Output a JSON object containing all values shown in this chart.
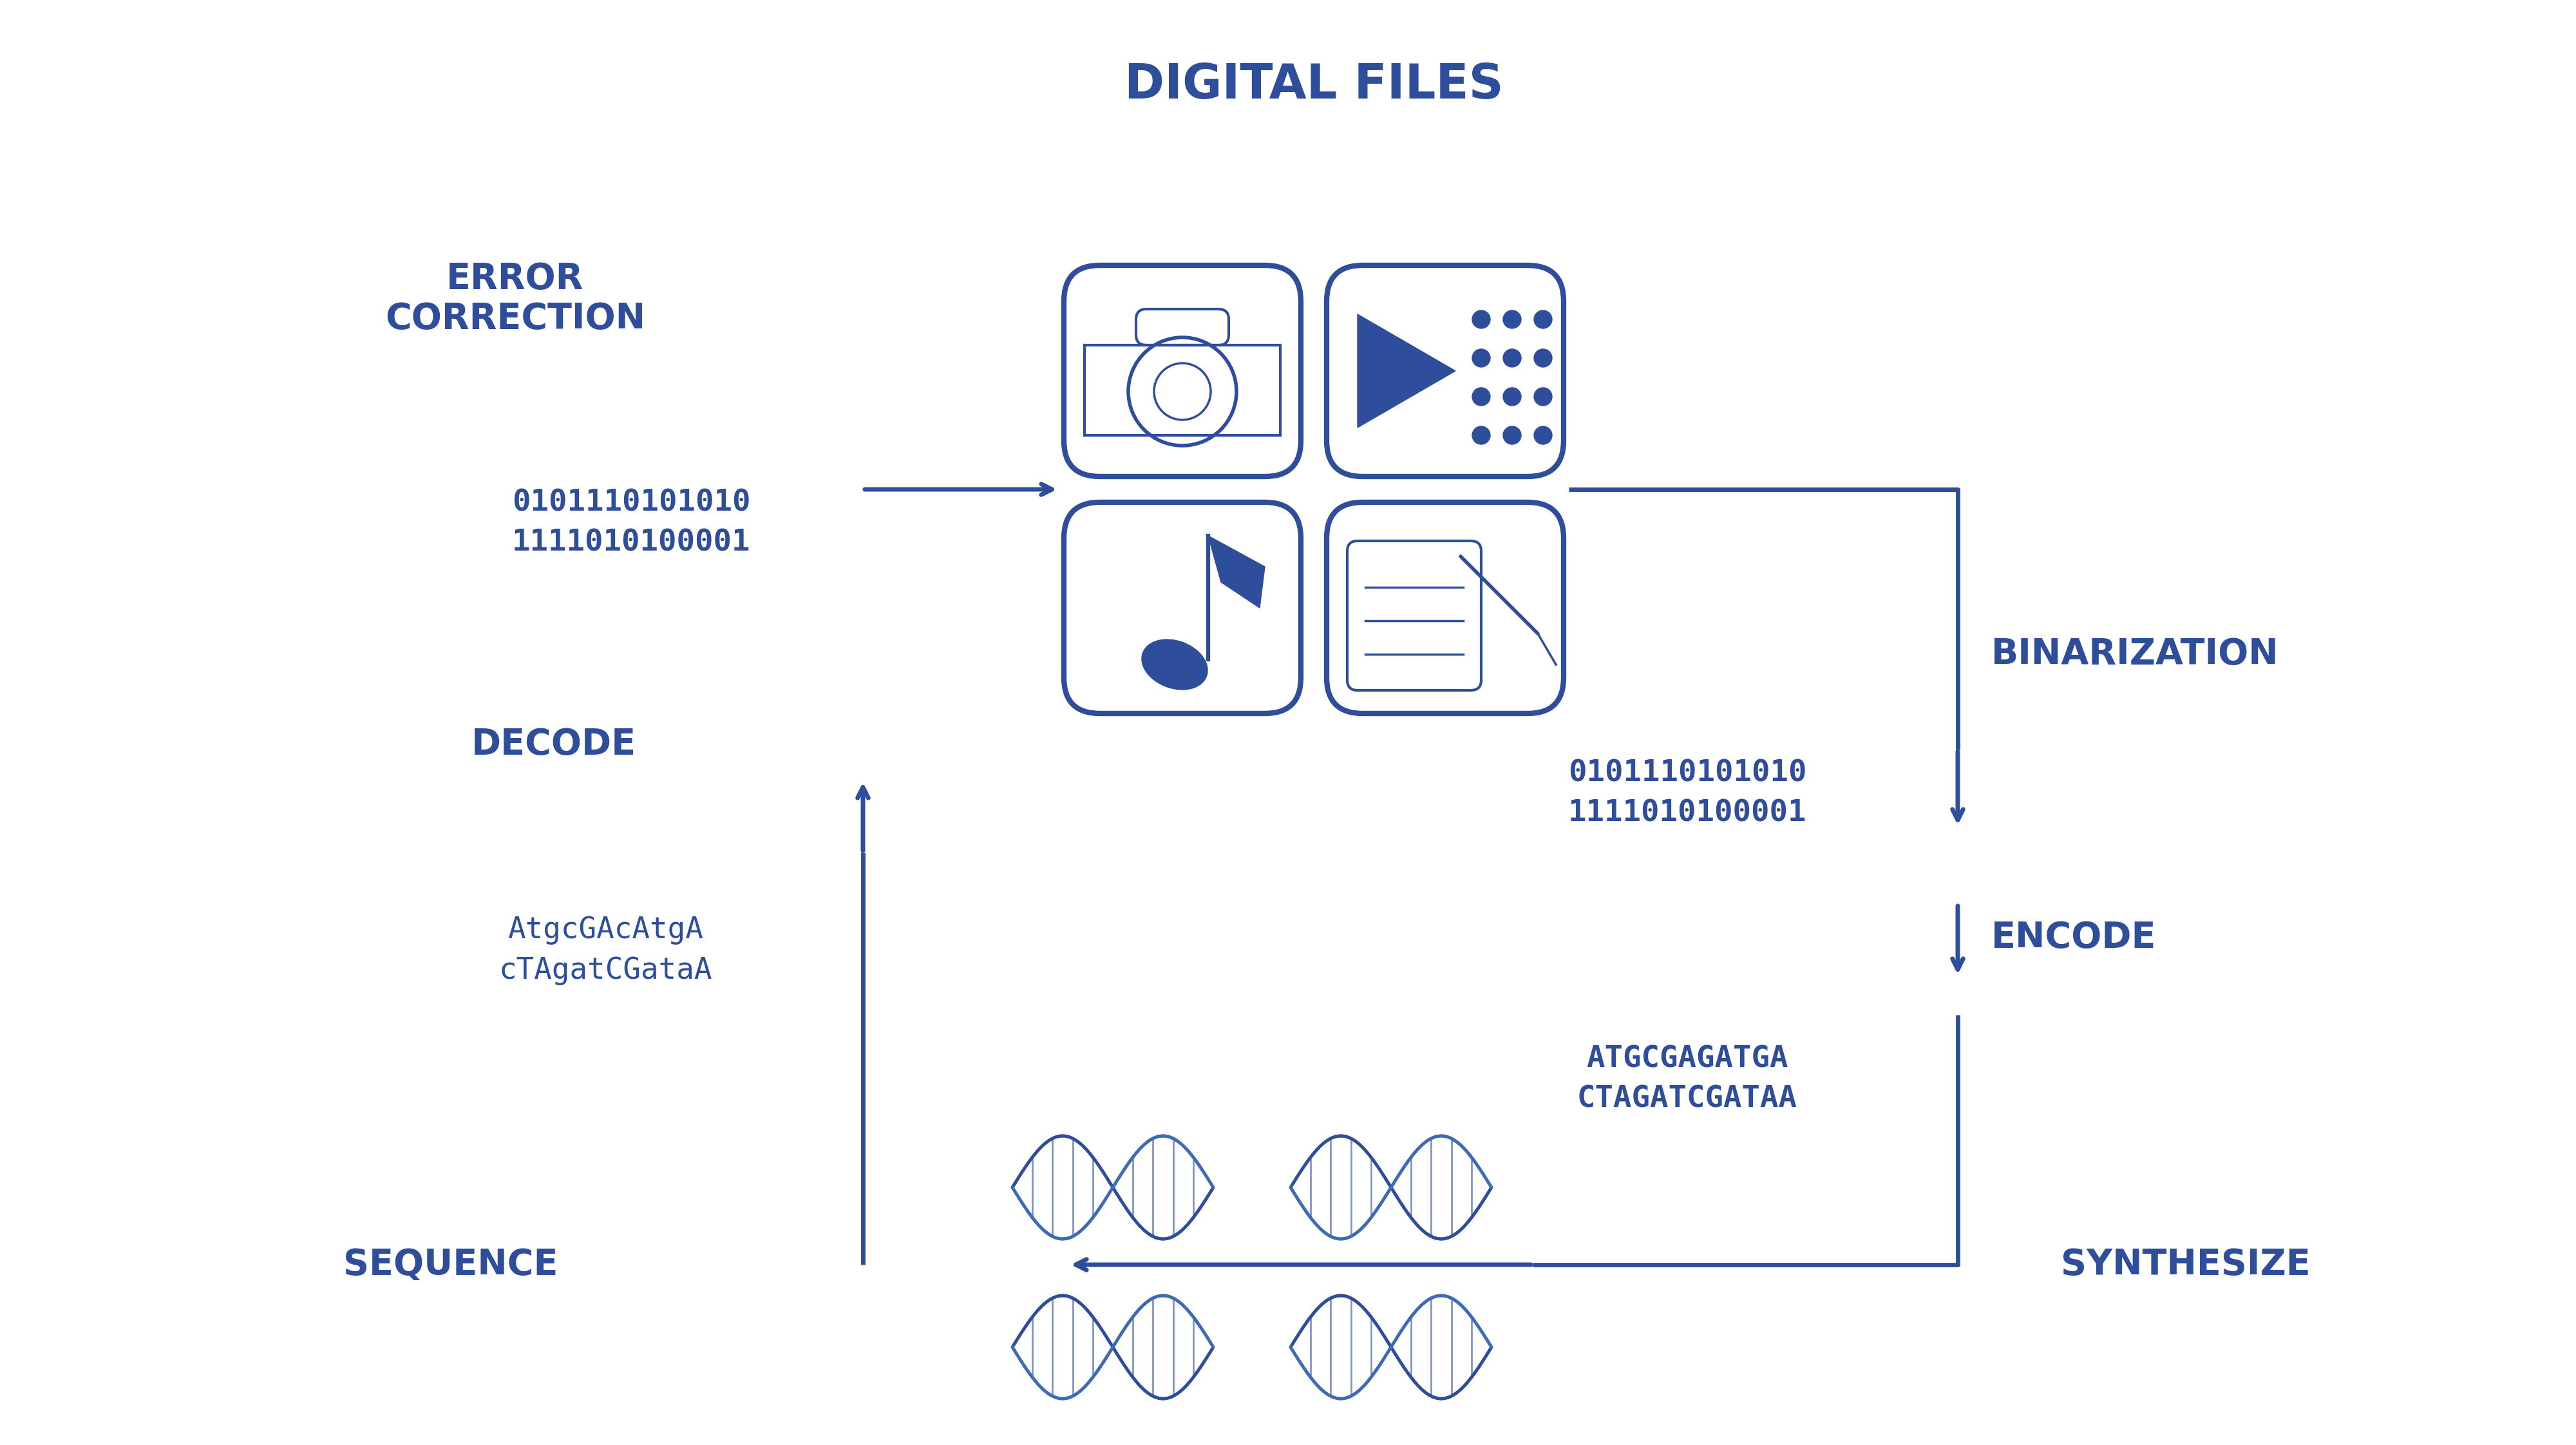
{
  "bg_color": "#ffffff",
  "mc": "#2E4D9B",
  "mc2": "#3D6BB5",
  "title": "DIGITAL FILES",
  "binary1": "0101110101010",
  "binary2": "1111010100001",
  "dna_encoded_1": "ATGCGAGATGA",
  "dna_encoded_2": "CTAGATCGATAA",
  "dna_decoded_1": "AtgcGAcAtgA",
  "dna_decoded_2": "cTAgatCGataA",
  "label_error": "ERROR\nCORRECTION",
  "label_decode": "DECODE",
  "label_encode": "ENCODE",
  "label_binarize": "BINARIZATION",
  "label_synthesize": "SYNTHESIZE",
  "label_sequence": "SEQUENCE",
  "title_fs": 54,
  "label_fs": 40,
  "binary_fs": 34,
  "dna_fs": 32,
  "icon_lw": 6,
  "arrow_lw": 5,
  "corner_r": 0.18
}
